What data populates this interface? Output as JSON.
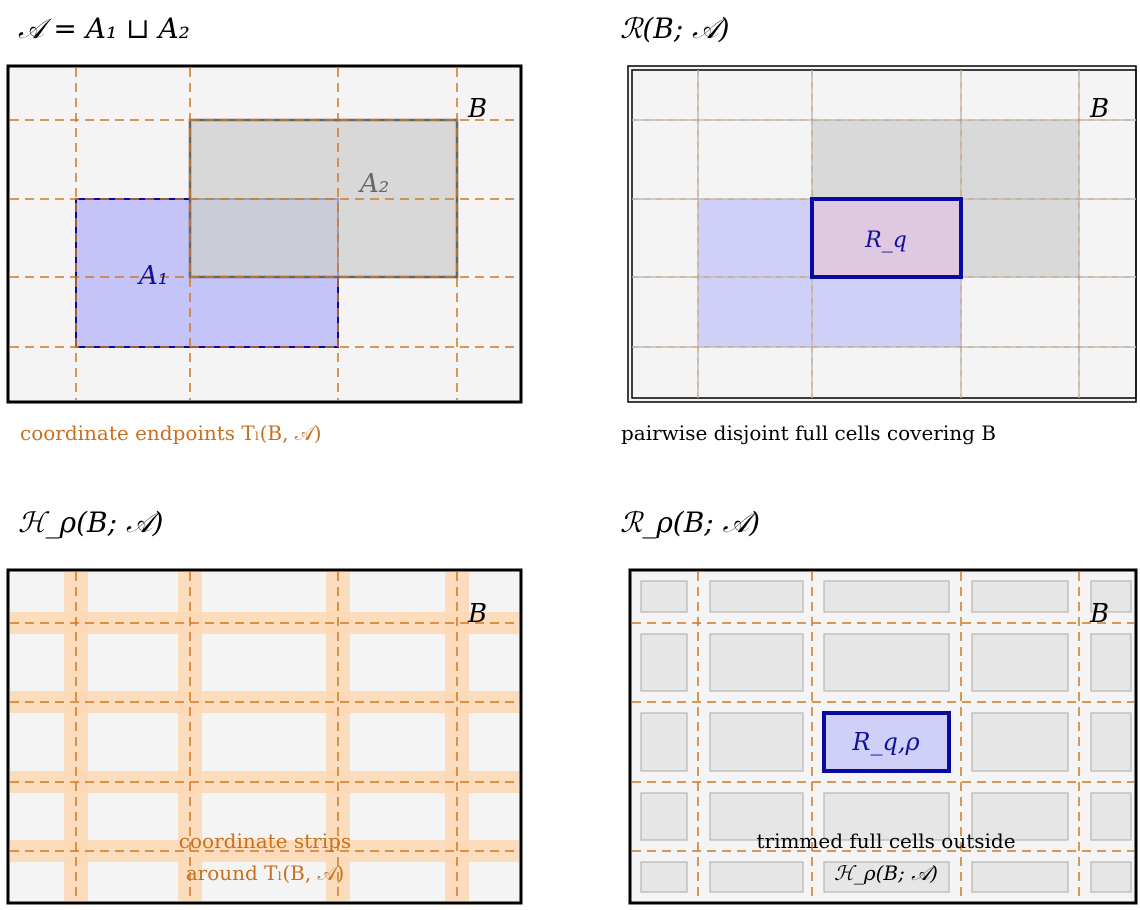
{
  "colors": {
    "frame": "#000000",
    "background": "#f4f4f4",
    "dash": "#d07820",
    "blue_fill": "#c4c4f8",
    "blue_stroke": "#0a0aa0",
    "gray_fill": "#d9d9d9",
    "gray_stroke": "#666666",
    "pink_fill": "#e0c8e0",
    "strip_fill": "#fcd9b6",
    "cell_fill": "#e6e6e6",
    "cell_stroke": "#b5b5b5",
    "caption_orange": "#c8701e",
    "label_blue": "#1010a0",
    "label_gray": "#666666"
  },
  "panels": {
    "top_left": {
      "title": "𝒜 = A₁ ⊔ A₂",
      "box_label": "B",
      "a1_label": "A₁",
      "a2_label": "A₂",
      "caption": "coordinate endpoints Tₗ(B, 𝒜)"
    },
    "top_right": {
      "title": "ℛ(B; 𝒜)",
      "box_label": "B",
      "cell_label": "R_q",
      "caption": "pairwise disjoint full cells covering B"
    },
    "bottom_left": {
      "title": "ℋ_ρ(B; 𝒜)",
      "box_label": "B",
      "strip_caption_line1": "coordinate strips",
      "strip_caption_line2": "around Tₗ(B, 𝒜)"
    },
    "bottom_right": {
      "title": "ℛ_ρ(B; 𝒜)",
      "box_label": "B",
      "cell_label": "R_q,ρ",
      "caption_line1": "trimmed full cells outside",
      "caption_line2": "ℋ_ρ(B; 𝒜)"
    }
  }
}
